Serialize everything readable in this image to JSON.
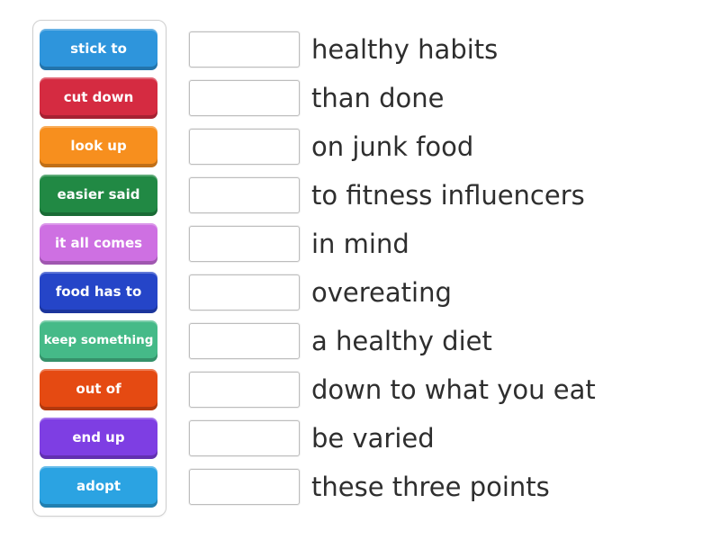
{
  "activity": {
    "kind": "match-up-exercise",
    "background_color": "#ffffff",
    "clue_text_color": "#2e2e2e",
    "panel_border_color": "#cfcfcf",
    "drop_box_border_color": "#bdbdbd"
  },
  "word_bank": {
    "items": [
      {
        "label": "stick to",
        "color": "#2e95dc",
        "small_text": false
      },
      {
        "label": "cut down",
        "color": "#d52b41",
        "small_text": false
      },
      {
        "label": "look up",
        "color": "#f78f1e",
        "small_text": false
      },
      {
        "label": "easier said",
        "color": "#218944",
        "small_text": false
      },
      {
        "label": "it all comes",
        "color": "#ce70e2",
        "small_text": false
      },
      {
        "label": "food has to",
        "color": "#2545c8",
        "small_text": false
      },
      {
        "label": "keep something",
        "color": "#45ba88",
        "small_text": true
      },
      {
        "label": "out of",
        "color": "#e54a12",
        "small_text": false
      },
      {
        "label": "end up",
        "color": "#7e3ee3",
        "small_text": false
      },
      {
        "label": "adopt",
        "color": "#2ba3e2",
        "small_text": false
      }
    ]
  },
  "answers": {
    "rows": [
      {
        "text": "healthy habits"
      },
      {
        "text": "than done"
      },
      {
        "text": "on junk food"
      },
      {
        "text": "to fitness influencers"
      },
      {
        "text": "in mind"
      },
      {
        "text": "overeating"
      },
      {
        "text": "a healthy diet"
      },
      {
        "text": "down to what you eat"
      },
      {
        "text": "be varied"
      },
      {
        "text": "these three points"
      }
    ]
  }
}
